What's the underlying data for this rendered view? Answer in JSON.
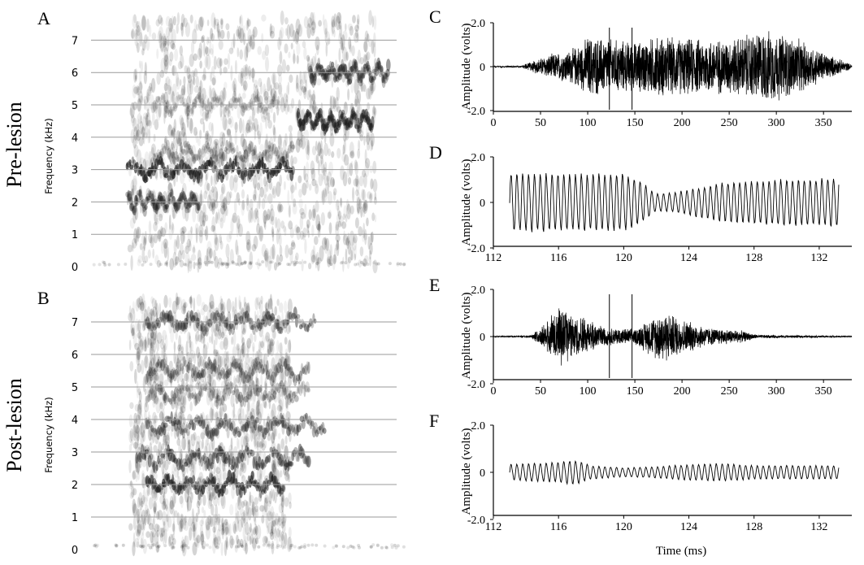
{
  "figure": {
    "row_labels": [
      "Pre-lesion",
      "Post-lesion"
    ]
  },
  "chart_data": [
    {
      "panel": "A",
      "type": "heatmap",
      "subtype": "spectrogram",
      "ylabel": "Frequency (kHz)",
      "yticks": [
        "0",
        "1",
        "2",
        "3",
        "4",
        "5",
        "6",
        "7"
      ],
      "ylim": [
        0,
        7.7
      ],
      "grid": true,
      "colors": {
        "ink": "#1a1a1a",
        "grid": "#9a9a9a"
      },
      "bands": [
        {
          "freq_khz": 3.0,
          "start": 0.12,
          "end": 0.65,
          "intensity": 0.95
        },
        {
          "freq_khz": 2.0,
          "start": 0.12,
          "end": 0.35,
          "intensity": 0.5
        },
        {
          "freq_khz": 4.5,
          "start": 0.66,
          "end": 0.9,
          "intensity": 0.8
        },
        {
          "freq_khz": 6.0,
          "start": 0.7,
          "end": 0.95,
          "intensity": 0.6
        },
        {
          "freq_khz": 3.5,
          "start": 0.2,
          "end": 0.65,
          "intensity": 0.35
        },
        {
          "freq_khz": 5.0,
          "start": 0.2,
          "end": 0.6,
          "intensity": 0.25
        }
      ]
    },
    {
      "panel": "B",
      "type": "heatmap",
      "subtype": "spectrogram",
      "ylabel": "Frequency (kHz)",
      "yticks": [
        "0",
        "1",
        "2",
        "3",
        "4",
        "5",
        "6",
        "7"
      ],
      "ylim": [
        0,
        7.7
      ],
      "grid": true,
      "colors": {
        "ink": "#1a1a1a",
        "grid": "#9a9a9a"
      },
      "bands": [
        {
          "freq_khz": 2.8,
          "start": 0.15,
          "end": 0.7,
          "intensity": 0.7
        },
        {
          "freq_khz": 2.0,
          "start": 0.18,
          "end": 0.62,
          "intensity": 0.85
        },
        {
          "freq_khz": 3.8,
          "start": 0.18,
          "end": 0.75,
          "intensity": 0.6
        },
        {
          "freq_khz": 7.0,
          "start": 0.18,
          "end": 0.72,
          "intensity": 0.6
        },
        {
          "freq_khz": 5.5,
          "start": 0.18,
          "end": 0.7,
          "intensity": 0.5
        },
        {
          "freq_khz": 4.8,
          "start": 0.18,
          "end": 0.7,
          "intensity": 0.4
        }
      ]
    },
    {
      "panel": "C",
      "type": "line",
      "subtype": "waveform",
      "ylabel": "Amplitude (volts)",
      "xlim": [
        0,
        380
      ],
      "ylim": [
        -2.0,
        2.0
      ],
      "xticks": [
        "0",
        "50",
        "100",
        "150",
        "200",
        "250",
        "300",
        "350"
      ],
      "yticks": [
        "-2.0",
        "0",
        "2.0"
      ],
      "markers_ms": [
        123,
        147
      ],
      "envelope": [
        [
          0,
          0.03
        ],
        [
          30,
          0.05
        ],
        [
          45,
          0.35
        ],
        [
          60,
          0.6
        ],
        [
          80,
          0.8
        ],
        [
          95,
          1.2
        ],
        [
          100,
          1.5
        ],
        [
          120,
          1.4
        ],
        [
          150,
          1.2
        ],
        [
          175,
          1.5
        ],
        [
          200,
          1.4
        ],
        [
          250,
          1.35
        ],
        [
          285,
          1.8
        ],
        [
          310,
          1.6
        ],
        [
          330,
          1.2
        ],
        [
          350,
          0.7
        ],
        [
          370,
          0.3
        ],
        [
          380,
          0.1
        ]
      ]
    },
    {
      "panel": "D",
      "type": "line",
      "subtype": "waveform",
      "ylabel": "Amplitude (volts)",
      "xlim": [
        112,
        134
      ],
      "ylim": [
        -2.0,
        2.0
      ],
      "xticks": [
        "112",
        "116",
        "120",
        "124",
        "128",
        "132"
      ],
      "yticks": [
        "-2.0",
        "0",
        "2.0"
      ],
      "signal_start_ms": 113,
      "signal_end_ms": 133.2,
      "period_ms": 0.36,
      "envelope": [
        [
          113,
          1.35
        ],
        [
          117,
          1.3
        ],
        [
          120,
          1.3
        ],
        [
          121,
          1.0
        ],
        [
          122,
          0.4
        ],
        [
          123,
          0.45
        ],
        [
          124,
          0.6
        ],
        [
          126,
          0.9
        ],
        [
          128,
          1.0
        ],
        [
          130,
          1.05
        ],
        [
          133.2,
          1.1
        ]
      ]
    },
    {
      "panel": "E",
      "type": "line",
      "subtype": "waveform",
      "ylabel": "Amplitude (volts)",
      "xlim": [
        0,
        380
      ],
      "ylim": [
        -2.0,
        2.0
      ],
      "xticks": [
        "0",
        "50",
        "100",
        "150",
        "200",
        "250",
        "300",
        "350"
      ],
      "yticks": [
        "-2.0",
        "0",
        "2.0"
      ],
      "markers_ms": [
        123,
        147
      ],
      "envelope": [
        [
          0,
          0.02
        ],
        [
          40,
          0.05
        ],
        [
          55,
          0.6
        ],
        [
          70,
          1.5
        ],
        [
          85,
          0.9
        ],
        [
          100,
          0.8
        ],
        [
          120,
          0.4
        ],
        [
          150,
          0.35
        ],
        [
          165,
          0.8
        ],
        [
          180,
          1.2
        ],
        [
          200,
          0.8
        ],
        [
          230,
          0.4
        ],
        [
          260,
          0.3
        ],
        [
          280,
          0.08
        ],
        [
          380,
          0.03
        ]
      ]
    },
    {
      "panel": "F",
      "type": "line",
      "subtype": "waveform",
      "ylabel": "Amplitude (volts)",
      "xlabel": "Time (ms)",
      "xlim": [
        112,
        134
      ],
      "ylim": [
        -2.0,
        2.0
      ],
      "xticks": [
        "112",
        "116",
        "120",
        "124",
        "128",
        "132"
      ],
      "yticks": [
        "-2.0",
        "0",
        "2.0"
      ],
      "signal_start_ms": 113,
      "signal_end_ms": 133.2,
      "period_ms": 0.36,
      "envelope": [
        [
          113,
          0.35
        ],
        [
          116,
          0.45
        ],
        [
          117,
          0.55
        ],
        [
          118,
          0.3
        ],
        [
          120,
          0.2
        ],
        [
          122,
          0.25
        ],
        [
          124,
          0.35
        ],
        [
          126,
          0.4
        ],
        [
          128,
          0.3
        ],
        [
          130,
          0.3
        ],
        [
          133.2,
          0.3
        ]
      ]
    }
  ]
}
